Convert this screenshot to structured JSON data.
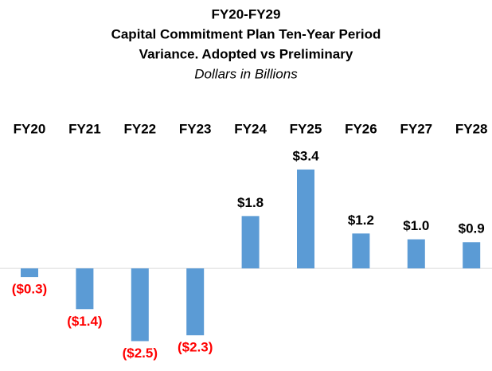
{
  "chart_data": {
    "type": "bar",
    "title": [
      "FY20-FY29",
      "Capital Commitment Plan Ten-Year Period",
      "Variance. Adopted vs Preliminary"
    ],
    "subtitle": "Dollars in Billions",
    "categories": [
      "FY20",
      "FY21",
      "FY22",
      "FY23",
      "FY24",
      "FY25",
      "FY26",
      "FY27",
      "FY28"
    ],
    "values": [
      -0.3,
      -1.4,
      -2.5,
      -2.3,
      1.8,
      3.4,
      1.2,
      1.0,
      0.9
    ],
    "value_labels": [
      "($0.3)",
      "($1.4)",
      "($2.5)",
      "($2.3)",
      "$1.8",
      "$3.4",
      "$1.2",
      "$1.0",
      "$0.9"
    ],
    "color": "#5b9bd5",
    "negative_label_color": "#ff0000",
    "positive_label_color": "#000000",
    "ylim": [
      -3.5,
      4
    ]
  }
}
